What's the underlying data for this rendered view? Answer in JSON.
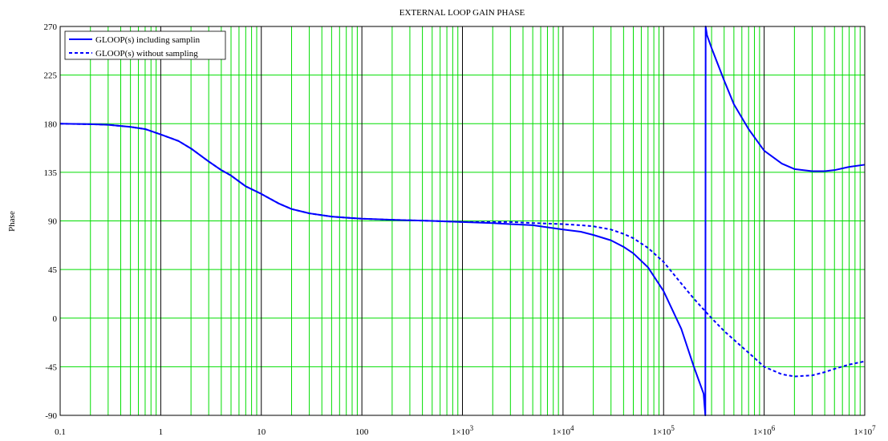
{
  "chart_data": {
    "type": "line",
    "title": "EXTERNAL LOOP GAIN PHASE",
    "xlabel": "",
    "ylabel": "Phase",
    "x_scale": "log",
    "xlim": [
      0.1,
      10000000
    ],
    "ylim": [
      -90,
      270
    ],
    "y_ticks": [
      -90,
      -45,
      0,
      45,
      90,
      135,
      180,
      225,
      270
    ],
    "x_ticks": [
      {
        "value": 0.1,
        "label": "0.1",
        "exp": ""
      },
      {
        "value": 1,
        "label": "1",
        "exp": ""
      },
      {
        "value": 10,
        "label": "10",
        "exp": ""
      },
      {
        "value": 100,
        "label": "100",
        "exp": ""
      },
      {
        "value": 1000,
        "label": "1×10",
        "exp": "3"
      },
      {
        "value": 10000,
        "label": "1×10",
        "exp": "4"
      },
      {
        "value": 100000,
        "label": "1×10",
        "exp": "5"
      },
      {
        "value": 1000000,
        "label": "1×10",
        "exp": "6"
      },
      {
        "value": 10000000,
        "label": "1×10",
        "exp": "7"
      }
    ],
    "grid": true,
    "legend_position": "top-left",
    "series": [
      {
        "name": "GLOOP(s) including samplin",
        "style": "solid",
        "color": "#0000ff",
        "x": [
          0.1,
          0.2,
          0.3,
          0.5,
          0.7,
          1,
          1.5,
          2,
          3,
          4,
          5,
          7,
          10,
          15,
          20,
          30,
          50,
          70,
          100,
          200,
          500,
          1000,
          2000,
          3000,
          5000,
          10000,
          15000,
          20000,
          30000,
          40000,
          50000,
          70000,
          100000,
          150000,
          200000,
          250000,
          260000,
          262000,
          270000,
          300000,
          400000,
          500000,
          700000,
          1000000,
          1500000,
          2000000,
          3000000,
          4000000,
          5000000,
          7000000,
          10000000
        ],
        "y": [
          180,
          179.5,
          179,
          177,
          175,
          170,
          164,
          157,
          145,
          137,
          132,
          122,
          115,
          106,
          101,
          97,
          94,
          93,
          92,
          91,
          90,
          89,
          88,
          87,
          86,
          82,
          80,
          77,
          72,
          66,
          60,
          47,
          25,
          -10,
          -45,
          -70,
          -90,
          270,
          262,
          250,
          220,
          198,
          175,
          155,
          143,
          138,
          136,
          136,
          137,
          140,
          142
        ]
      },
      {
        "name": "GLOOP(s) without sampling",
        "style": "dashed",
        "color": "#0000ff",
        "x": [
          0.1,
          0.2,
          0.3,
          0.5,
          0.7,
          1,
          1.5,
          2,
          3,
          4,
          5,
          7,
          10,
          15,
          20,
          30,
          50,
          70,
          100,
          200,
          500,
          1000,
          2000,
          3000,
          5000,
          10000,
          15000,
          20000,
          30000,
          40000,
          50000,
          70000,
          100000,
          150000,
          200000,
          250000,
          300000,
          400000,
          500000,
          700000,
          1000000,
          1500000,
          2000000,
          3000000,
          4000000,
          5000000,
          7000000,
          10000000
        ],
        "y": [
          180,
          179.5,
          179,
          177,
          175,
          170,
          164,
          157,
          145,
          137,
          132,
          122,
          115,
          106,
          101,
          97,
          94,
          93,
          92,
          91,
          90,
          89,
          89,
          89,
          88,
          87,
          86,
          85,
          82,
          78,
          74,
          65,
          52,
          32,
          18,
          8,
          0,
          -12,
          -20,
          -32,
          -45,
          -52,
          -54,
          -53,
          -50,
          -47,
          -43,
          -40
        ]
      }
    ]
  }
}
